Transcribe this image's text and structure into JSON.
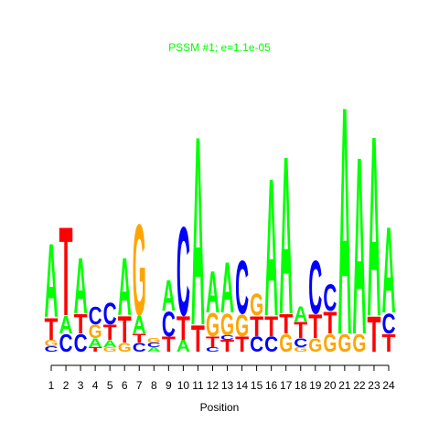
{
  "chart_data": {
    "type": "logo",
    "title": "PSSM #1; e=1.1e-05",
    "xlabel": "Position",
    "categories": [
      "1",
      "2",
      "3",
      "4",
      "5",
      "6",
      "7",
      "8",
      "9",
      "10",
      "11",
      "12",
      "13",
      "14",
      "15",
      "16",
      "17",
      "18",
      "19",
      "20",
      "21",
      "22",
      "23",
      "24"
    ],
    "colors": {
      "A": "#00ff00",
      "C": "#0000ff",
      "G": "#ffa500",
      "T": "#ff0000"
    },
    "title_color": "#00ff00",
    "stacks": [
      {
        "letters": [
          "C",
          "G",
          "T",
          "A"
        ],
        "values": [
          6,
          7,
          25,
          83
        ]
      },
      {
        "letters": [
          "C",
          "A",
          "T"
        ],
        "values": [
          20,
          20,
          100
        ]
      },
      {
        "letters": [
          "C",
          "T",
          "A"
        ],
        "values": [
          20,
          22,
          63
        ]
      },
      {
        "letters": [
          "T",
          "A",
          "G",
          "C"
        ],
        "values": [
          5,
          10,
          15,
          20
        ]
      },
      {
        "letters": [
          "G",
          "A",
          "T",
          "C"
        ],
        "values": [
          5,
          8,
          17,
          25
        ]
      },
      {
        "letters": [
          "G",
          "T",
          "A"
        ],
        "values": [
          10,
          30,
          65
        ]
      },
      {
        "letters": [
          "C",
          "T",
          "A",
          "G"
        ],
        "values": [
          10,
          10,
          20,
          103
        ]
      },
      {
        "letters": [
          "A",
          "C",
          "G"
        ],
        "values": [
          5,
          5,
          5
        ]
      },
      {
        "letters": [
          "T",
          "C",
          "A"
        ],
        "values": [
          17,
          28,
          35
        ]
      },
      {
        "letters": [
          "A",
          "T",
          "C"
        ],
        "values": [
          13,
          27,
          100
        ]
      },
      {
        "letters": [
          "T",
          "A"
        ],
        "values": [
          30,
          213
        ]
      },
      {
        "letters": [
          "C",
          "T",
          "G",
          "A"
        ],
        "values": [
          5,
          12,
          26,
          47
        ]
      },
      {
        "letters": [
          "T",
          "C",
          "G",
          "A"
        ],
        "values": [
          13,
          5,
          25,
          57
        ]
      },
      {
        "letters": [
          "T",
          "G",
          "C"
        ],
        "values": [
          17,
          25,
          60
        ]
      },
      {
        "letters": [
          "C",
          "T",
          "G"
        ],
        "values": [
          17,
          23,
          25
        ]
      },
      {
        "letters": [
          "C",
          "T",
          "A"
        ],
        "values": [
          17,
          23,
          155
        ]
      },
      {
        "letters": [
          "G",
          "T",
          "A"
        ],
        "values": [
          20,
          22,
          178
        ]
      },
      {
        "letters": [
          "G",
          "C",
          "T",
          "A"
        ],
        "values": [
          5,
          10,
          18,
          17
        ]
      },
      {
        "letters": [
          "G",
          "T",
          "C"
        ],
        "values": [
          15,
          27,
          60
        ]
      },
      {
        "letters": [
          "G",
          "T",
          "C"
        ],
        "values": [
          20,
          25,
          30
        ]
      },
      {
        "letters": [
          "G",
          "A"
        ],
        "values": [
          20,
          257
        ]
      },
      {
        "letters": [
          "G",
          "A"
        ],
        "values": [
          20,
          200
        ]
      },
      {
        "letters": [
          "T",
          "A"
        ],
        "values": [
          40,
          203
        ]
      },
      {
        "letters": [
          "T",
          "C",
          "A"
        ],
        "values": [
          20,
          23,
          97
        ]
      }
    ]
  }
}
